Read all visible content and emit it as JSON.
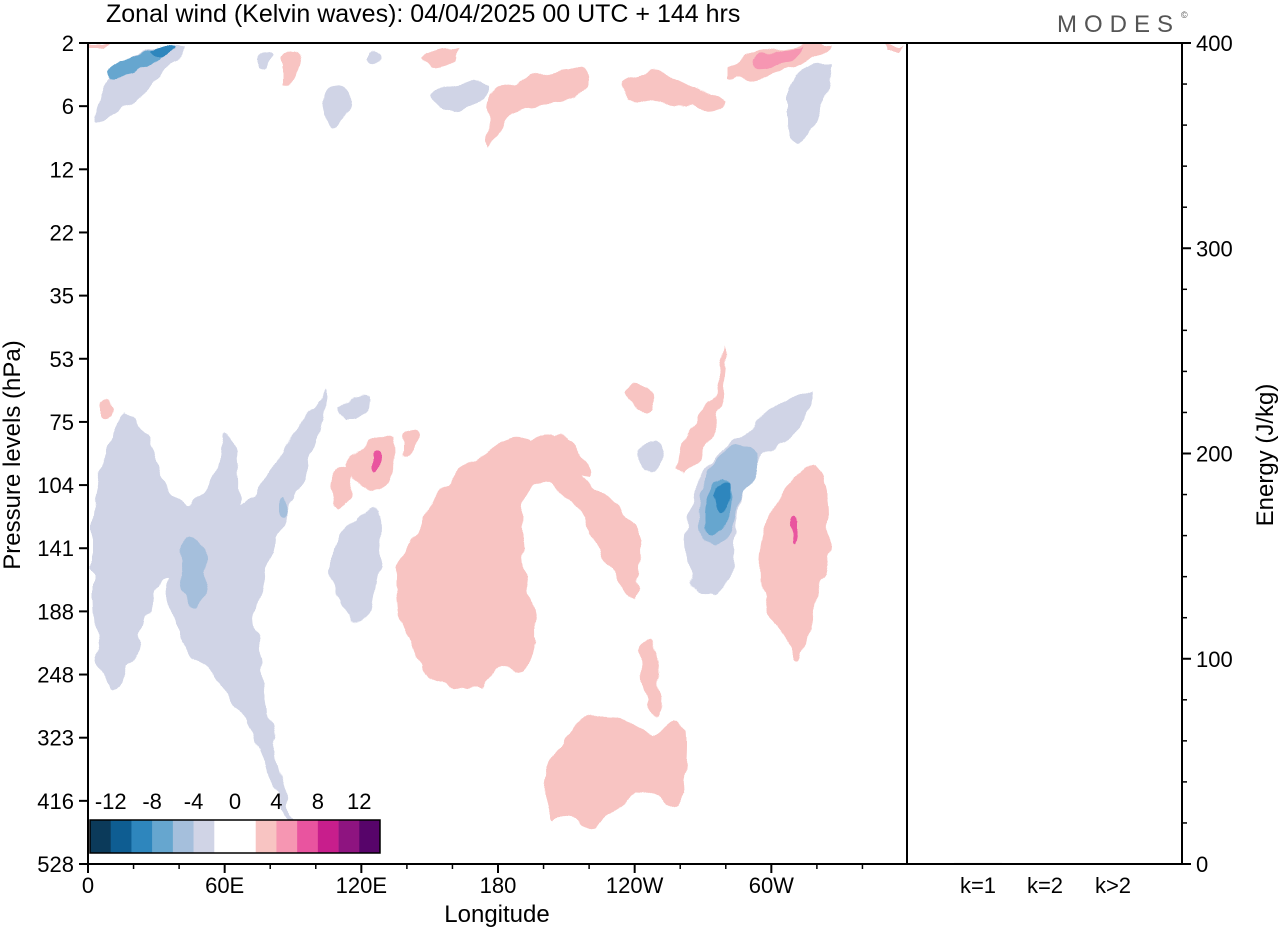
{
  "title": "Zonal wind (Kelvin waves):  04/04/2025  00 UTC  + 144 hrs",
  "logo": "MODES",
  "logo_mark": "©",
  "chart_data": [
    {
      "type": "heatmap",
      "title": "Zonal wind (Kelvin waves):  04/04/2025  00 UTC  + 144 hrs",
      "xlabel": "Longitude",
      "ylabel": "Pressure levels (hPa)",
      "x_ticks": [
        {
          "lon": 0,
          "label": "0"
        },
        {
          "lon": 60,
          "label": "60E"
        },
        {
          "lon": 120,
          "label": "120E"
        },
        {
          "lon": 180,
          "label": "180"
        },
        {
          "lon": 240,
          "label": "120W"
        },
        {
          "lon": 300,
          "label": "60W"
        }
      ],
      "xlim": [
        0,
        360
      ],
      "y_levels": [
        "2",
        "6",
        "12",
        "22",
        "35",
        "53",
        "75",
        "104",
        "141",
        "188",
        "248",
        "323",
        "416",
        "528"
      ],
      "y_scale": "log",
      "colorbar": {
        "labels": [
          "-12",
          "-8",
          "-4",
          "0",
          "4",
          "8",
          "12"
        ],
        "colors": [
          "#0b3a5a",
          "#0e5d92",
          "#2e86bd",
          "#66a6cf",
          "#a5bfdc",
          "#d0d4e6",
          "#ffffff",
          "#ffffff",
          "#f8c4c2",
          "#f696b2",
          "#e9549f",
          "#c81e8c",
          "#8e1480",
          "#57046a"
        ]
      },
      "features": [
        {
          "sign": "negative",
          "peak": -10,
          "level_hpa": [
            2,
            6
          ],
          "lon": [
            5,
            40
          ]
        },
        {
          "sign": "positive",
          "peak": 8,
          "level_hpa": [
            2,
            5
          ],
          "lon": [
            285,
            310
          ]
        },
        {
          "sign": "positive",
          "peak": 4,
          "level_hpa": [
            3,
            10
          ],
          "lon": [
            177,
            215
          ]
        },
        {
          "sign": "negative",
          "peak": -4,
          "level_hpa": [
            4,
            12
          ],
          "lon": [
            310,
            328
          ]
        },
        {
          "sign": "negative",
          "peak": -6,
          "level_hpa": [
            75,
            416
          ],
          "lon": [
            0,
            100
          ]
        },
        {
          "sign": "positive",
          "peak": 8,
          "level_hpa": [
            85,
            115
          ],
          "lon": [
            110,
            130
          ]
        },
        {
          "sign": "positive",
          "peak": 4,
          "level_hpa": [
            85,
            265
          ],
          "lon": [
            135,
            245
          ]
        },
        {
          "sign": "negative",
          "peak": -10,
          "level_hpa": [
            60,
            200
          ],
          "lon": [
            258,
            320
          ]
        },
        {
          "sign": "positive",
          "peak": 8,
          "level_hpa": [
            95,
            245
          ],
          "lon": [
            296,
            328
          ]
        },
        {
          "sign": "positive",
          "peak": 4,
          "level_hpa": [
            260,
            450
          ],
          "lon": [
            200,
            263
          ]
        }
      ]
    },
    {
      "type": "bar",
      "categories": [
        "k=1",
        "k=2",
        "k>2"
      ],
      "values": [
        0.5,
        0.3,
        0.3
      ],
      "ylabel": "Energy (J/kg)",
      "ylim": [
        0,
        400
      ],
      "y_ticks": [
        0,
        100,
        200,
        300,
        400
      ]
    }
  ]
}
